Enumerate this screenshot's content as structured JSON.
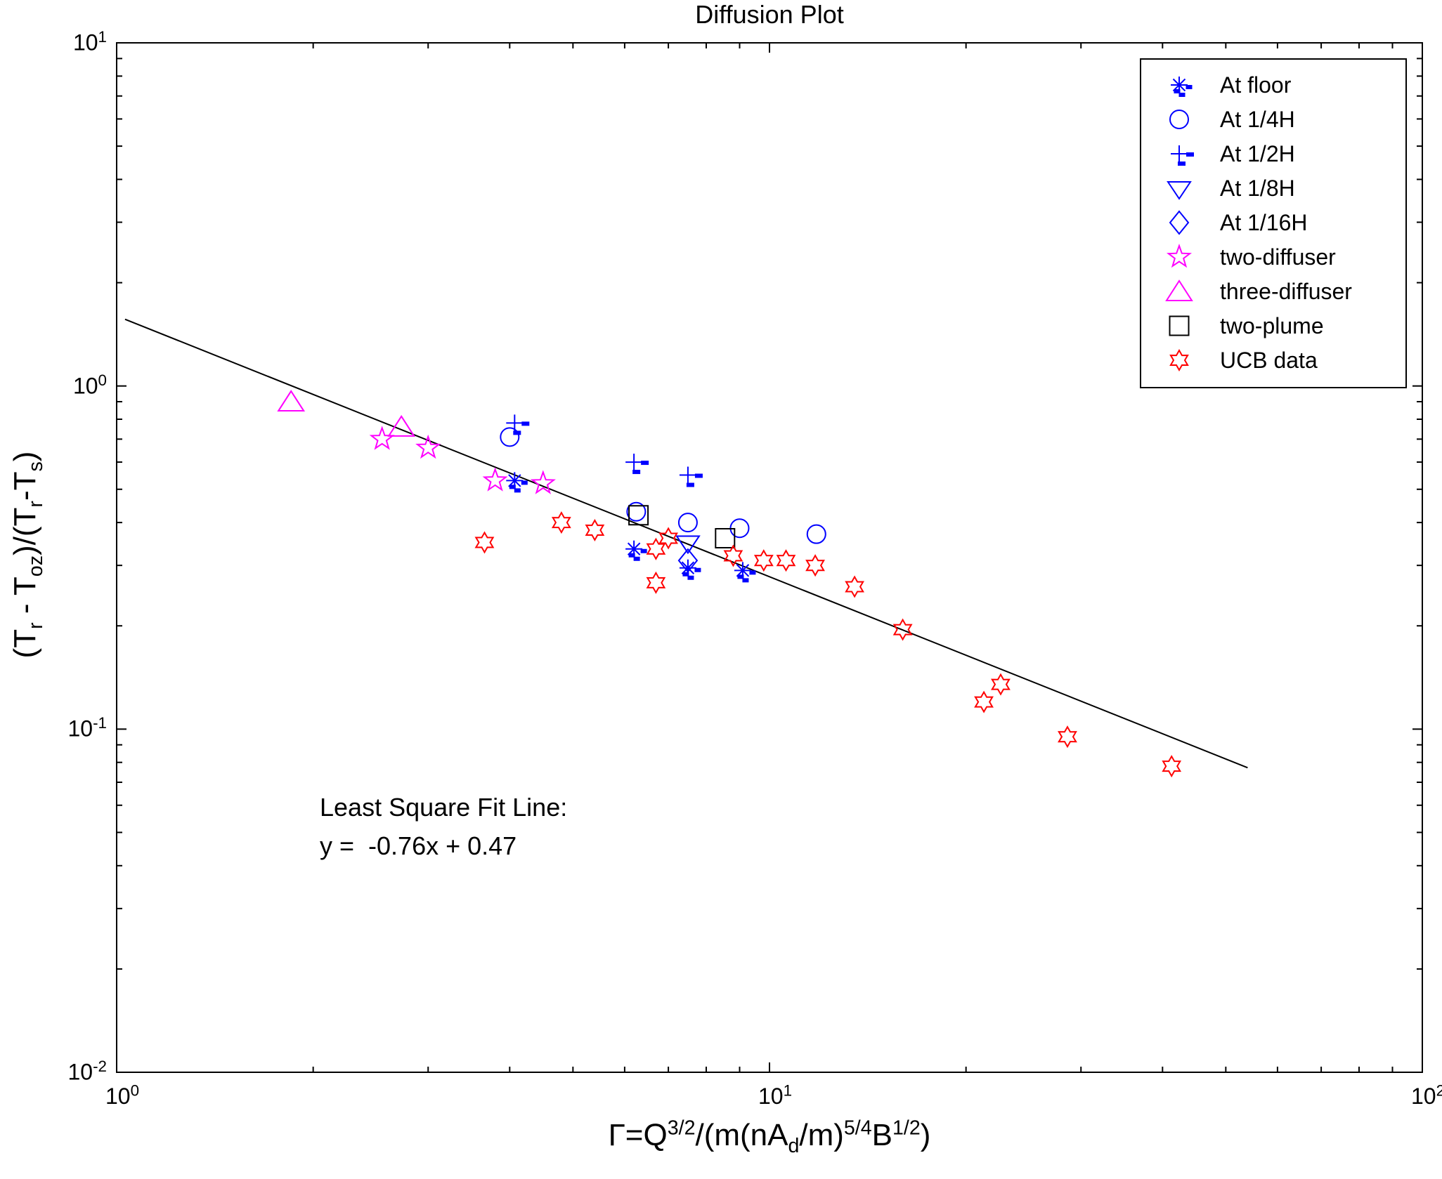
{
  "title": "Diffusion Plot",
  "colors": {
    "blue": "#0000ff",
    "magenta": "#ff00ff",
    "red": "#ff0000",
    "black": "#000000"
  },
  "axes": {
    "x": {
      "scale": "log",
      "min": 1,
      "max": 100,
      "ticks": [
        {
          "base": "10",
          "exp": "0",
          "value": 1
        },
        {
          "base": "10",
          "exp": "1",
          "value": 10
        },
        {
          "base": "10",
          "exp": "2",
          "value": 100
        }
      ],
      "label_segments": [
        {
          "t": "Γ=Q"
        },
        {
          "sup": "3/2"
        },
        {
          "t": "/(m(nA"
        },
        {
          "sub": "d"
        },
        {
          "t": "/m)"
        },
        {
          "sup": "5/4"
        },
        {
          "t": "B"
        },
        {
          "sup": "1/2"
        },
        {
          "t": ")"
        }
      ]
    },
    "y": {
      "scale": "log",
      "min": 0.01,
      "max": 10,
      "ticks": [
        {
          "base": "10",
          "exp": "1",
          "value": 10
        },
        {
          "base": "10",
          "exp": "0",
          "value": 1
        },
        {
          "base": "10",
          "exp": "-1",
          "value": 0.1
        },
        {
          "base": "10",
          "exp": "-2",
          "value": 0.01
        }
      ],
      "label_segments": [
        {
          "t": "(T"
        },
        {
          "sub": "r"
        },
        {
          "t": " - T"
        },
        {
          "sub": "oz"
        },
        {
          "t": ")/(T"
        },
        {
          "sub": "r"
        },
        {
          "t": "-T"
        },
        {
          "sub": "s"
        },
        {
          "t": ")"
        }
      ]
    }
  },
  "legend": {
    "items": [
      {
        "label": "At floor",
        "marker": "asterisk-dashes",
        "color": "#0000ff"
      },
      {
        "label": "At 1/4H",
        "marker": "circle",
        "color": "#0000ff"
      },
      {
        "label": "At 1/2H",
        "marker": "plus-dashes",
        "color": "#0000ff"
      },
      {
        "label": "At 1/8H",
        "marker": "triangle-down",
        "color": "#0000ff"
      },
      {
        "label": "At 1/16H",
        "marker": "diamond",
        "color": "#0000ff"
      },
      {
        "label": "two-diffuser",
        "marker": "star5",
        "color": "#ff00ff"
      },
      {
        "label": "three-diffuser",
        "marker": "triangle-up",
        "color": "#ff00ff"
      },
      {
        "label": "two-plume",
        "marker": "square",
        "color": "#000000"
      },
      {
        "label": "UCB data",
        "marker": "star6",
        "color": "#ff0000"
      }
    ]
  },
  "annotation": {
    "line1": "Least Square Fit Line:",
    "line2": "y =  -0.76x + 0.47"
  },
  "chart_data": {
    "type": "scatter",
    "x_scale": "log",
    "y_scale": "log",
    "xlim": [
      1,
      100
    ],
    "ylim": [
      0.01,
      10
    ],
    "title": "Diffusion Plot",
    "xlabel": "Gamma=Q^(3/2)/(m(nA_d/m)^(5/4)B^(1/2))",
    "ylabel": "(T_r - T_oz)/(T_r-T_s)",
    "legend_position": "top-right",
    "series": [
      {
        "name": "At floor",
        "marker": "asterisk-dashes",
        "color": "#0000ff",
        "points": [
          [
            4.07,
            0.53
          ],
          [
            6.2,
            0.335
          ],
          [
            7.5,
            0.295
          ],
          [
            9.1,
            0.29
          ]
        ]
      },
      {
        "name": "At 1/4H",
        "marker": "circle",
        "color": "#0000ff",
        "points": [
          [
            4.0,
            0.71
          ],
          [
            6.25,
            0.43
          ],
          [
            7.5,
            0.4
          ],
          [
            9.0,
            0.385
          ],
          [
            11.8,
            0.37
          ]
        ]
      },
      {
        "name": "At 1/2H",
        "marker": "plus-dashes",
        "color": "#0000ff",
        "points": [
          [
            4.07,
            0.78
          ],
          [
            6.2,
            0.6
          ],
          [
            7.5,
            0.55
          ]
        ]
      },
      {
        "name": "At 1/8H",
        "marker": "triangle-down",
        "color": "#0000ff",
        "points": [
          [
            7.5,
            0.35
          ]
        ]
      },
      {
        "name": "At 1/16H",
        "marker": "diamond",
        "color": "#0000ff",
        "points": [
          [
            7.5,
            0.31
          ]
        ]
      },
      {
        "name": "two-diffuser",
        "marker": "star5",
        "color": "#ff00ff",
        "points": [
          [
            2.55,
            0.7
          ],
          [
            3.0,
            0.66
          ],
          [
            3.8,
            0.53
          ],
          [
            4.5,
            0.52
          ]
        ]
      },
      {
        "name": "three-diffuser",
        "marker": "triangle-up",
        "color": "#ff00ff",
        "points": [
          [
            1.85,
            0.9
          ],
          [
            2.73,
            0.76
          ]
        ]
      },
      {
        "name": "two-plume",
        "marker": "square",
        "color": "#000000",
        "points": [
          [
            6.3,
            0.42
          ],
          [
            8.55,
            0.36
          ]
        ]
      },
      {
        "name": "UCB data",
        "marker": "star6",
        "color": "#ff0000",
        "points": [
          [
            3.66,
            0.35
          ],
          [
            4.8,
            0.4
          ],
          [
            5.4,
            0.38
          ],
          [
            6.7,
            0.335
          ],
          [
            7.0,
            0.36
          ],
          [
            6.7,
            0.267
          ],
          [
            8.8,
            0.32
          ],
          [
            9.8,
            0.31
          ],
          [
            10.6,
            0.31
          ],
          [
            11.75,
            0.3
          ],
          [
            13.5,
            0.26
          ],
          [
            16.0,
            0.195
          ],
          [
            21.3,
            0.12
          ],
          [
            22.6,
            0.135
          ],
          [
            28.6,
            0.095
          ],
          [
            41.3,
            0.078
          ]
        ]
      }
    ],
    "fit_line": {
      "space": "ln",
      "slope": -0.76,
      "intercept": 0.47,
      "x_range": [
        1.03,
        54
      ],
      "color": "#000000"
    }
  }
}
